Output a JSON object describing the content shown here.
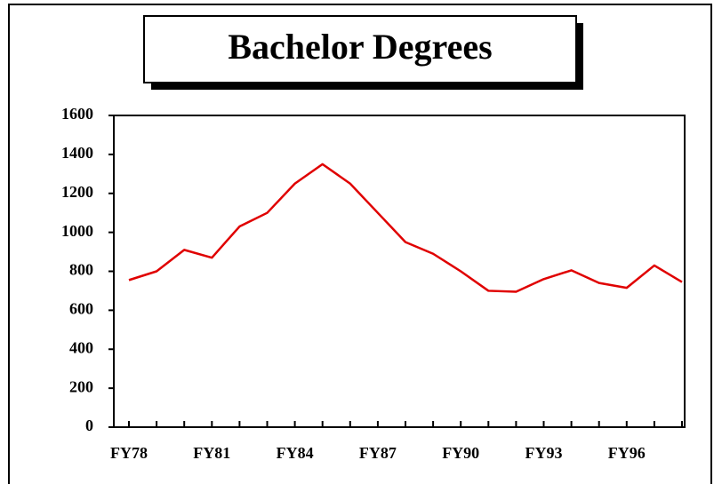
{
  "chart_data": {
    "type": "line",
    "title": "Bachelor Degrees",
    "categories": [
      "FY78",
      null,
      null,
      "FY81",
      null,
      null,
      "FY84",
      null,
      null,
      "FY87",
      null,
      null,
      "FY90",
      null,
      null,
      "FY93",
      null,
      null,
      "FY96",
      null,
      null
    ],
    "series": [
      {
        "name": "Bachelor Degrees",
        "color": "#e00000",
        "values": [
          755,
          800,
          910,
          870,
          1030,
          1100,
          1250,
          1350,
          1250,
          1100,
          950,
          890,
          800,
          700,
          695,
          760,
          805,
          740,
          715,
          830,
          745
        ]
      }
    ],
    "ylim": [
      0,
      1600
    ],
    "yticks": [
      0,
      200,
      400,
      600,
      800,
      1000,
      1200,
      1400,
      1600
    ],
    "grid": false
  }
}
